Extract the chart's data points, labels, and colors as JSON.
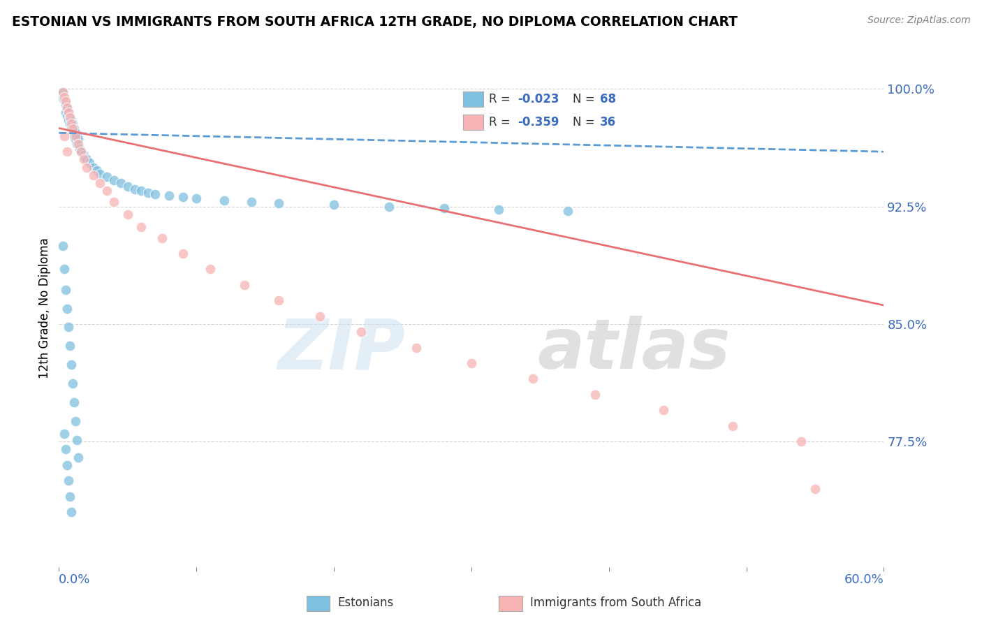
{
  "title": "ESTONIAN VS IMMIGRANTS FROM SOUTH AFRICA 12TH GRADE, NO DIPLOMA CORRELATION CHART",
  "source": "Source: ZipAtlas.com",
  "ylabel": "12th Grade, No Diploma",
  "xlim": [
    0.0,
    0.6
  ],
  "ylim": [
    0.695,
    1.025
  ],
  "yticks": [
    0.775,
    0.85,
    0.925,
    1.0
  ],
  "ytick_labels": [
    "77.5%",
    "85.0%",
    "92.5%",
    "100.0%"
  ],
  "blue_R": -0.023,
  "blue_N": 68,
  "pink_R": -0.359,
  "pink_N": 36,
  "blue_color": "#7fbfdf",
  "pink_color": "#f8b4b4",
  "blue_line_color": "#5b9bd5",
  "pink_line_color": "#e87070",
  "axis_label_color": "#3a6bbf",
  "legend_labels": [
    "Estonians",
    "Immigrants from South Africa"
  ],
  "blue_line_x0": 0.0,
  "blue_line_x1": 0.6,
  "blue_line_y0": 0.972,
  "blue_line_y1": 0.96,
  "pink_line_x0": 0.0,
  "pink_line_x1": 0.6,
  "pink_line_y0": 0.975,
  "pink_line_y1": 0.862,
  "blue_scatter_x": [
    0.002,
    0.003,
    0.004,
    0.005,
    0.005,
    0.006,
    0.006,
    0.007,
    0.007,
    0.008,
    0.008,
    0.009,
    0.009,
    0.01,
    0.01,
    0.011,
    0.011,
    0.012,
    0.012,
    0.013,
    0.013,
    0.014,
    0.015,
    0.016,
    0.018,
    0.019,
    0.02,
    0.022,
    0.025,
    0.028,
    0.03,
    0.035,
    0.04,
    0.045,
    0.05,
    0.055,
    0.06,
    0.065,
    0.07,
    0.08,
    0.09,
    0.1,
    0.12,
    0.14,
    0.16,
    0.2,
    0.24,
    0.28,
    0.32,
    0.37,
    0.003,
    0.004,
    0.005,
    0.006,
    0.007,
    0.008,
    0.009,
    0.01,
    0.011,
    0.012,
    0.013,
    0.014,
    0.004,
    0.005,
    0.006,
    0.007,
    0.008,
    0.009
  ],
  "blue_scatter_y": [
    0.995,
    0.998,
    0.993,
    0.99,
    0.985,
    0.988,
    0.983,
    0.985,
    0.98,
    0.982,
    0.978,
    0.98,
    0.975,
    0.978,
    0.972,
    0.975,
    0.97,
    0.972,
    0.968,
    0.97,
    0.965,
    0.968,
    0.962,
    0.96,
    0.958,
    0.956,
    0.955,
    0.953,
    0.95,
    0.948,
    0.946,
    0.944,
    0.942,
    0.94,
    0.938,
    0.936,
    0.935,
    0.934,
    0.933,
    0.932,
    0.931,
    0.93,
    0.929,
    0.928,
    0.927,
    0.926,
    0.925,
    0.924,
    0.923,
    0.922,
    0.9,
    0.885,
    0.872,
    0.86,
    0.848,
    0.836,
    0.824,
    0.812,
    0.8,
    0.788,
    0.776,
    0.765,
    0.78,
    0.77,
    0.76,
    0.75,
    0.74,
    0.73
  ],
  "pink_scatter_x": [
    0.003,
    0.004,
    0.005,
    0.006,
    0.007,
    0.008,
    0.009,
    0.01,
    0.012,
    0.014,
    0.016,
    0.018,
    0.02,
    0.025,
    0.03,
    0.035,
    0.04,
    0.05,
    0.06,
    0.075,
    0.09,
    0.11,
    0.135,
    0.16,
    0.19,
    0.22,
    0.26,
    0.3,
    0.345,
    0.39,
    0.44,
    0.49,
    0.54,
    0.55,
    0.004,
    0.006
  ],
  "pink_scatter_y": [
    0.998,
    0.995,
    0.992,
    0.988,
    0.985,
    0.982,
    0.978,
    0.975,
    0.97,
    0.965,
    0.96,
    0.955,
    0.95,
    0.945,
    0.94,
    0.935,
    0.928,
    0.92,
    0.912,
    0.905,
    0.895,
    0.885,
    0.875,
    0.865,
    0.855,
    0.845,
    0.835,
    0.825,
    0.815,
    0.805,
    0.795,
    0.785,
    0.775,
    0.745,
    0.97,
    0.96
  ]
}
